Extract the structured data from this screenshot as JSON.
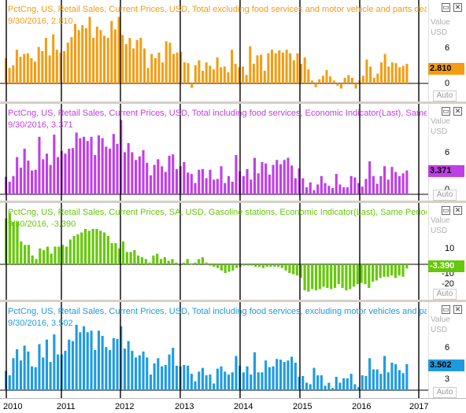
{
  "panels": [
    {
      "title": "PctCng, US, Retail Sales, Current Prices, USD, Total excluding food services and motor vehicle and parts deale",
      "subtitle": "9/30/2016, 2.810",
      "color": "#f39c12",
      "axis_header": [
        "Value",
        "USD"
      ],
      "ticks": [
        "6",
        "0"
      ],
      "last_value": "2.810",
      "auto_label": "Auto"
    },
    {
      "title": "PctCng, US, Retail Sales, Current Prices, USD, Total including food services, Economic Indicator(Last), Same Pe",
      "subtitle": "9/30/2016, 3.371",
      "color": "#bf3fe6",
      "axis_header": [
        "Value",
        "USD"
      ],
      "ticks": [
        "6",
        "0"
      ],
      "last_value": "3.371",
      "auto_label": "Auto"
    },
    {
      "title": "PctCng, US, Retail Sales, Current Prices, SA, USD, Gasoline stations, Economic Indicator(Last), Same Period, P",
      "subtitle": "9/30/2016, -3.390",
      "color": "#66c80a",
      "axis_header": [
        "Value",
        "USD"
      ],
      "ticks": [
        "10",
        "-10",
        "-20"
      ],
      "last_value": "-3.390",
      "auto_label": "Auto"
    },
    {
      "title": "PctCng, US, Retail Sales, Current Prices, USD, Total including food services, excluding motor vehicles and parts",
      "subtitle": "9/30/2016, 3.502",
      "color": "#1e9be0",
      "axis_header": [
        "Value",
        "USD"
      ],
      "ticks": [
        "6",
        "3"
      ],
      "last_value": "3.502",
      "auto_label": "Auto"
    }
  ],
  "x_axis": [
    "2010",
    "2011",
    "2012",
    "2013",
    "2014",
    "2015",
    "2016",
    "2017"
  ],
  "chart_data": [
    {
      "type": "bar",
      "title": "PctCng, US, Retail Sales, Current Prices, USD, Total excluding food services and motor vehicle and parts deale",
      "ylabel": "Value USD",
      "last": 2.81,
      "values": [
        3.6,
        2.2,
        2.6,
        4.8,
        3.8,
        4.2,
        4.3,
        3.6,
        3.1,
        5.2,
        4.6,
        6.5,
        4.0,
        7.0,
        4.8,
        4.4,
        4.6,
        5.8,
        6.6,
        8.5,
        7.6,
        8.3,
        7.9,
        9.5,
        6.5,
        8.1,
        7.6,
        6.8,
        6.5,
        8.9,
        7.7,
        9.5,
        6.9,
        5.6,
        6.5,
        5.0,
        6.2,
        6.5,
        5.0,
        2.2,
        4.2,
        3.6,
        4.4,
        3.0,
        6.0,
        5.8,
        4.2,
        4.4,
        4.5,
        3.0,
        2.9,
        -0.6,
        2.6,
        3.3,
        1.8,
        3.0,
        2.5,
        2.0,
        3.7,
        2.3,
        2.4,
        1.6,
        4.8,
        2.8,
        2.3,
        2.4,
        1.2,
        5.3,
        2.8,
        4.0,
        4.1,
        1.8,
        4.3,
        4.8,
        4.3,
        4.7,
        4.4,
        4.8,
        4.3,
        3.3,
        4.3,
        2.8,
        3.7,
        2.0,
        0.4,
        -0.5,
        0.6,
        1.1,
        1.9,
        1.0,
        0.4,
        -0.3,
        -0.7,
        0.8,
        1.2,
        0.8,
        -0.7,
        0.4,
        1.1,
        3.4,
        2.4,
        0.8,
        1.4,
        3.0,
        4.2,
        2.4,
        3.0,
        2.9,
        2.3,
        2.5,
        2.8
      ]
    },
    {
      "type": "bar",
      "title": "PctCng, US, Retail Sales, Current Prices, USD, Total including food services, Economic Indicator(Last), Same Pe",
      "ylabel": "Value USD",
      "last": 3.371,
      "values": [
        2.5,
        1.8,
        2.6,
        5.3,
        3.8,
        6.5,
        4.8,
        3.4,
        3.5,
        8.2,
        5.0,
        5.8,
        4.2,
        8.5,
        5.3,
        6.2,
        5.8,
        6.5,
        6.6,
        8.8,
        8.0,
        8.2,
        7.6,
        8.2,
        5.6,
        8.4,
        8.0,
        6.8,
        6.5,
        8.6,
        7.2,
        10.6,
        6.0,
        7.3,
        6.0,
        4.9,
        5.4,
        6.3,
        4.5,
        2.7,
        4.2,
        5.0,
        4.0,
        3.2,
        5.5,
        5.7,
        3.6,
        4.0,
        4.6,
        3.1,
        2.9,
        1.6,
        3.5,
        3.6,
        2.3,
        3.5,
        2.1,
        2.2,
        4.0,
        1.6,
        2.6,
        1.8,
        5.6,
        3.3,
        2.6,
        3.6,
        2.1,
        5.2,
        3.0,
        4.6,
        4.4,
        2.8,
        4.2,
        4.9,
        4.3,
        4.9,
        5.2,
        4.1,
        2.3,
        3.7,
        2.3,
        1.0,
        1.7,
        0.6,
        1.4,
        2.6,
        1.6,
        1.2,
        0.9,
        2.9,
        1.4,
        1.0,
        1.0,
        2.6,
        2.4,
        1.6,
        1.1,
        2.2,
        4.7,
        2.6,
        1.5,
        2.6,
        4.0,
        2.1,
        3.9,
        3.2,
        2.6,
        3.0,
        3.4
      ]
    },
    {
      "type": "bar",
      "title": "PctCng, US, Retail Sales, Current Prices, SA, USD, Gasoline stations, Economic Indicator(Last), Same Period, P",
      "ylabel": "Value USD",
      "last": -3.39,
      "values": [
        26,
        29,
        24,
        24,
        13,
        11,
        11,
        5,
        3,
        9,
        8,
        10,
        6,
        10,
        10,
        11,
        10,
        14,
        16,
        17,
        18,
        20,
        19,
        20,
        20,
        19,
        18,
        16,
        12,
        12,
        9,
        13,
        7,
        7,
        8,
        5,
        4,
        3,
        1,
        5,
        6,
        3,
        4,
        2,
        3,
        1,
        -1,
        1,
        3,
        0,
        1,
        3,
        4,
        1,
        -1,
        -2,
        -3,
        -5,
        -7,
        -6,
        -5,
        -3,
        -2,
        -1,
        -1,
        -1,
        -2,
        -2,
        -3,
        -2,
        -2,
        -2,
        -2,
        -3,
        -5,
        -7,
        -8,
        -9,
        -11,
        -21,
        -22,
        -20,
        -21,
        -20,
        -18,
        -19,
        -20,
        -19,
        -16,
        -19,
        -21,
        -20,
        -18,
        -16,
        -15,
        -16,
        -19,
        -14,
        -13,
        -11,
        -10,
        -10,
        -9,
        -11,
        -9,
        -10,
        -3.39
      ]
    },
    {
      "type": "bar",
      "title": "PctCng, US, Retail Sales, Current Prices, USD, Total including food services, excluding motor vehicles and parts",
      "ylabel": "Value USD",
      "last": 3.502,
      "values": [
        2.6,
        2.0,
        4.3,
        5.5,
        4.0,
        6.0,
        5.2,
        3.2,
        3.1,
        6.2,
        4.4,
        6.8,
        3.8,
        7.5,
        4.8,
        4.8,
        5.3,
        6.8,
        6.6,
        8.8,
        7.8,
        8.6,
        7.8,
        8.0,
        5.4,
        8.0,
        7.3,
        5.8,
        5.4,
        7.0,
        6.9,
        8.6,
        5.6,
        6.6,
        5.3,
        4.4,
        4.7,
        5.2,
        4.4,
        2.1,
        3.6,
        4.3,
        3.2,
        3.4,
        4.8,
        5.7,
        3.3,
        3.2,
        3.4,
        3.3,
        2.2,
        1.2,
        2.5,
        3.0,
        2.0,
        2.1,
        0.9,
        2.9,
        3.2,
        2.5,
        2.1,
        2.4,
        4.6,
        3.3,
        2.4,
        3.2,
        2.1,
        5.1,
        2.4,
        2.4,
        4.0,
        3.1,
        3.2,
        4.2,
        4.1,
        3.8,
        4.0,
        4.5,
        3.7,
        1.8,
        1.9,
        1.0,
        0.8,
        3.0,
        2.0,
        2.0,
        0.6,
        1.0,
        0.3,
        1.8,
        1.0,
        1.6,
        1.6,
        2.2,
        0.8,
        0.4,
        2.0,
        1.9,
        4.3,
        2.8,
        2.8,
        2.2,
        4.6,
        2.4,
        3.7,
        3.5,
        2.7,
        2.3,
        3.502
      ]
    }
  ]
}
